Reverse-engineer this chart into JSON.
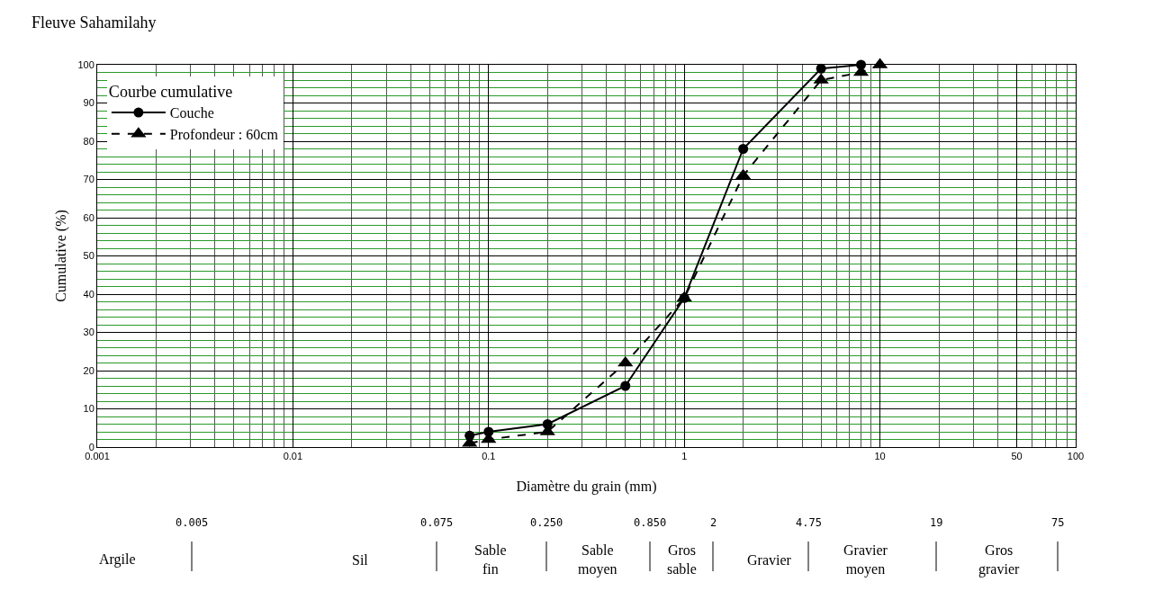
{
  "chart_data": {
    "type": "line",
    "title": "Fleuve Sahamilahy",
    "xlabel": "Diamètre du grain (mm)",
    "ylabel": "Cumulative (%)",
    "legend_title": "Courbe cumulative",
    "series": [
      {
        "name": "Couche",
        "color": "#000000",
        "marker": "circle",
        "line_style": "solid",
        "x": [
          0.08,
          0.1,
          0.2,
          0.5,
          1,
          2,
          5,
          8
        ],
        "values": [
          3,
          4,
          6,
          16,
          39,
          78,
          99,
          100
        ]
      },
      {
        "name": "Profondeur : 60cm",
        "color": "#000000",
        "marker": "triangle",
        "line_style": "dashed",
        "x": [
          0.08,
          0.1,
          0.2,
          0.5,
          1,
          2,
          5,
          8,
          10
        ],
        "values": [
          1,
          2,
          4,
          22,
          39,
          71,
          96,
          98,
          100
        ]
      }
    ],
    "log": "x",
    "xlim": [
      0.001,
      100
    ],
    "xticks": [
      0.001,
      0.01,
      0.1,
      1,
      10,
      50,
      100
    ],
    "ylim": [
      0,
      100
    ],
    "yticks": [
      0,
      {
        "value": 2,
        "label": null
      },
      {
        "value": 4,
        "label": null
      },
      {
        "value": 6,
        "label": null
      },
      {
        "value": 8,
        "label": null
      },
      10,
      {
        "value": 12,
        "label": null
      },
      {
        "value": 14,
        "label": null
      },
      {
        "value": 16,
        "label": null
      },
      {
        "value": 18,
        "label": null
      },
      20,
      {
        "value": 22,
        "label": null
      },
      {
        "value": 24,
        "label": null
      },
      {
        "value": 26,
        "label": null
      },
      {
        "value": 28,
        "label": null
      },
      30,
      {
        "value": 32,
        "label": null
      },
      {
        "value": 34,
        "label": null
      },
      {
        "value": 36,
        "label": null
      },
      {
        "value": 38,
        "label": null
      },
      40,
      {
        "value": 42,
        "label": null
      },
      {
        "value": 44,
        "label": null
      },
      {
        "value": 46,
        "label": null
      },
      {
        "value": 48,
        "label": null
      },
      50,
      {
        "value": 52,
        "label": null
      },
      {
        "value": 54,
        "label": null
      },
      {
        "value": 56,
        "label": null
      },
      {
        "value": 58,
        "label": null
      },
      60,
      {
        "value": 62,
        "label": null
      },
      {
        "value": 64,
        "label": null
      },
      {
        "value": 66,
        "label": null
      },
      {
        "value": 68,
        "label": null
      },
      70,
      {
        "value": 72,
        "label": null
      },
      {
        "value": 74,
        "label": null
      },
      {
        "value": 76,
        "label": null
      },
      {
        "value": 78,
        "label": null
      },
      80,
      {
        "value": 82,
        "label": null
      },
      {
        "value": 84,
        "label": null
      },
      {
        "value": 86,
        "label": null
      },
      {
        "value": 88,
        "label": null
      },
      90,
      {
        "value": 92,
        "label": null
      },
      {
        "value": 94,
        "label": null
      },
      {
        "value": 96,
        "label": null
      },
      {
        "value": 98,
        "label": null
      },
      100
    ],
    "grid": true,
    "legend": "top left",
    "annotations": [
      "Argile",
      "0.005",
      "Sil",
      "0.075",
      "Sable\nfin",
      "0.250",
      "Sable\nmoyen",
      "0.850",
      "Gros\nsable",
      "2",
      "Gravier",
      "4.75",
      "Gravier\nmoyen",
      "19",
      "Gros\ngravier",
      "75"
    ]
  }
}
